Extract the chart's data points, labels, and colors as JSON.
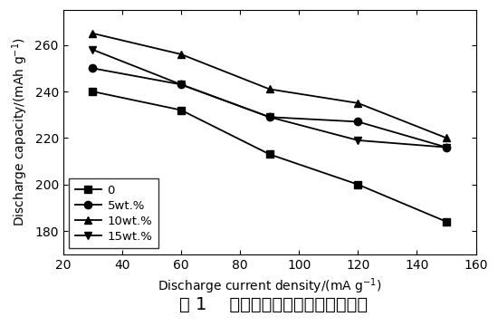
{
  "series": [
    {
      "label": "0",
      "x": [
        30,
        60,
        90,
        120,
        150
      ],
      "y": [
        240,
        232,
        213,
        200,
        184
      ],
      "marker": "s",
      "linestyle": "-"
    },
    {
      "label": "5wt.%",
      "x": [
        30,
        60,
        90,
        120,
        150
      ],
      "y": [
        250,
        243,
        229,
        227,
        216
      ],
      "marker": "o",
      "linestyle": "-"
    },
    {
      "label": "10wt.%",
      "x": [
        30,
        60,
        90,
        120,
        150
      ],
      "y": [
        265,
        256,
        241,
        235,
        220
      ],
      "marker": "^",
      "linestyle": "-"
    },
    {
      "label": "15wt.%",
      "x": [
        30,
        60,
        90,
        120,
        150
      ],
      "y": [
        258,
        243,
        229,
        219,
        216
      ],
      "marker": "v",
      "linestyle": "-"
    }
  ],
  "xlabel": "Discharge current density/(mA g$^{-1}$)",
  "ylabel": "Discharge capacity/(mAh g$^{-1}$)",
  "xlim": [
    20,
    160
  ],
  "ylim": [
    170,
    275
  ],
  "xticks": [
    20,
    40,
    60,
    80,
    100,
    120,
    140,
    160
  ],
  "yticks": [
    180,
    200,
    220,
    240,
    260
  ],
  "caption": "图 1    放电电流密度与放电容量关系",
  "line_color": "#000000",
  "background_color": "#ffffff",
  "legend_loc": "lower left",
  "axis_fontsize": 10,
  "tick_fontsize": 10,
  "legend_fontsize": 9.5,
  "caption_fontsize": 14
}
